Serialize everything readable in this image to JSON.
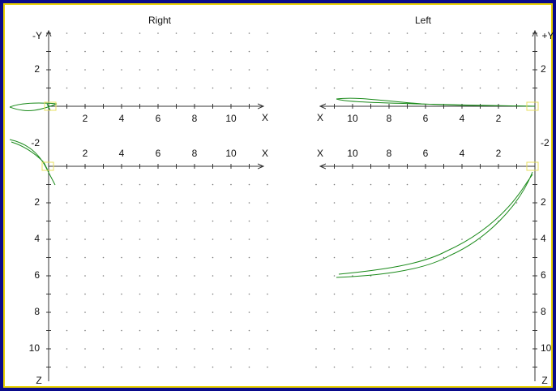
{
  "panels": [
    {
      "title": "Right",
      "y_label": "-Y",
      "x_label_top": "X",
      "x_label_bottom": "X",
      "z_label": "Z",
      "x_ticks": [
        "2",
        "4",
        "6",
        "8",
        "10"
      ],
      "y_ticks": [
        "2",
        "-2"
      ],
      "z_ticks": [
        "2",
        "4",
        "6",
        "8",
        "10"
      ]
    },
    {
      "title": "Left",
      "y_label": "+Y",
      "x_label_top": "X",
      "x_label_bottom": "X",
      "z_label": "Z",
      "x_ticks": [
        "2",
        "4",
        "6",
        "8",
        "10"
      ],
      "y_ticks": [
        "2",
        "-2"
      ],
      "z_ticks": [
        "2",
        "4",
        "6",
        "8",
        "10"
      ]
    }
  ]
}
